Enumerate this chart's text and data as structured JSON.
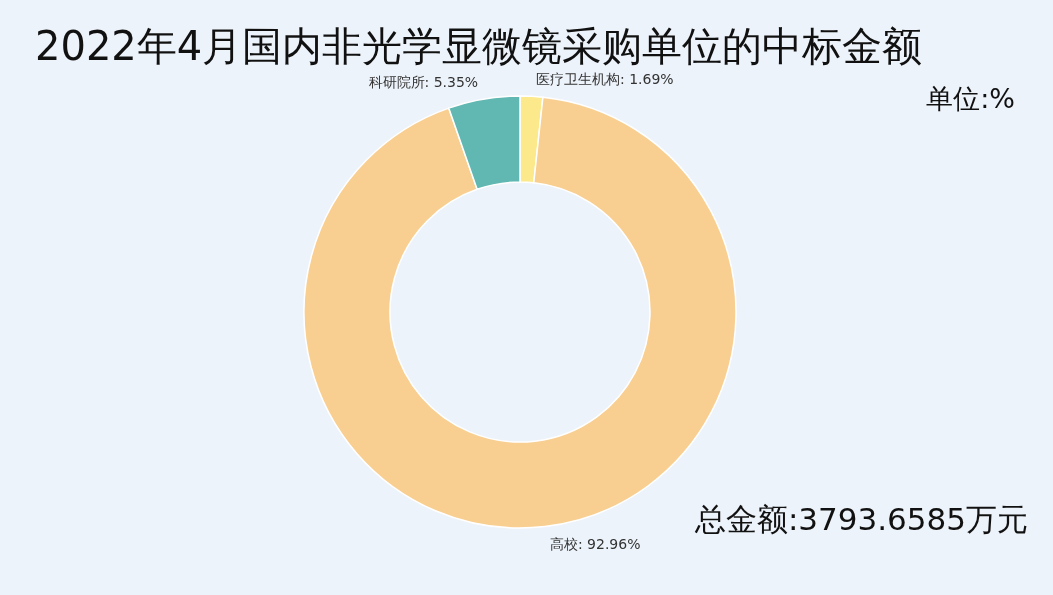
{
  "chart_data": {
    "type": "donut",
    "title": "2022年4月国内非光学显微镜采购单位的中标金额",
    "categories": [
      "医疗卫生机构",
      "高校",
      "科研院所"
    ],
    "values": [
      1.69,
      92.96,
      5.35
    ],
    "colors": [
      "#fbe98c",
      "#f8cf91",
      "#61b8b2"
    ],
    "value_labels": [
      "1.69%",
      "92.96%",
      "5.35%"
    ],
    "annotations": [
      "单位:%",
      "总金额:3793.6585万元"
    ]
  }
}
